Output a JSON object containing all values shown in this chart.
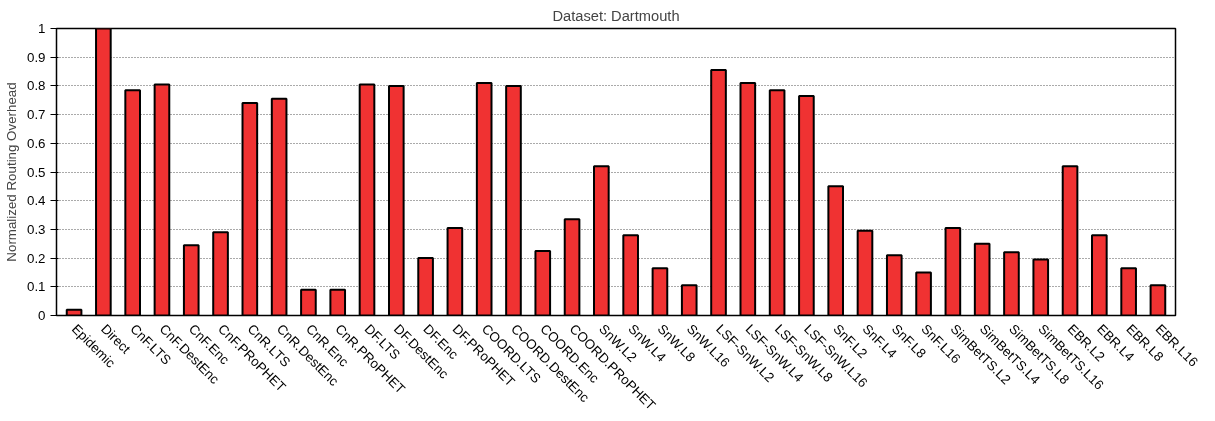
{
  "chart_data": {
    "type": "bar",
    "title": "Dataset: Dartmouth",
    "ylabel": "Normalized Routing Overhead",
    "categories": [
      "Epidemic",
      "Direct",
      "CnF.LTS",
      "CnF.DestEnc",
      "CnF.Enc",
      "CnF.PRoPHET",
      "CnR.LTS",
      "CnR.DestEnc",
      "CnR.Enc",
      "CnR.PRoPHET",
      "DF.LTS",
      "DF.DestEnc",
      "DF.Enc",
      "DF.PRoPHET",
      "COORD.LTS",
      "COORD.DestEnc",
      "COORD.Enc",
      "COORD.PRoPHET",
      "SnW.L2",
      "SnW.L4",
      "SnW.L8",
      "SnW.L16",
      "LSF-SnW.L2",
      "LSF-SnW.L4",
      "LSF-SnW.L8",
      "LSF-SnW.L16",
      "SnF.L2",
      "SnF.L4",
      "SnF.L8",
      "SnF.L16",
      "SimBetTS.L2",
      "SimBetTS.L4",
      "SimBetTS.L8",
      "SimBetTS.L16",
      "EBR.L2",
      "EBR.L4",
      "EBR.L8",
      "EBR.L16"
    ],
    "values": [
      0.02,
      1.0,
      0.785,
      0.805,
      0.245,
      0.29,
      0.74,
      0.755,
      0.09,
      0.09,
      0.805,
      0.8,
      0.2,
      0.305,
      0.81,
      0.8,
      0.225,
      0.335,
      0.52,
      0.28,
      0.165,
      0.105,
      0.855,
      0.81,
      0.785,
      0.765,
      0.45,
      0.295,
      0.21,
      0.15,
      0.305,
      0.25,
      0.22,
      0.195,
      0.52,
      0.28,
      0.165,
      0.105
    ],
    "color": "#f03232",
    "ylim": [
      0,
      1
    ],
    "yticks": [
      0,
      0.1,
      0.2,
      0.3,
      0.4,
      0.5,
      0.6,
      0.7,
      0.8,
      0.9,
      1
    ],
    "grid": "y"
  }
}
